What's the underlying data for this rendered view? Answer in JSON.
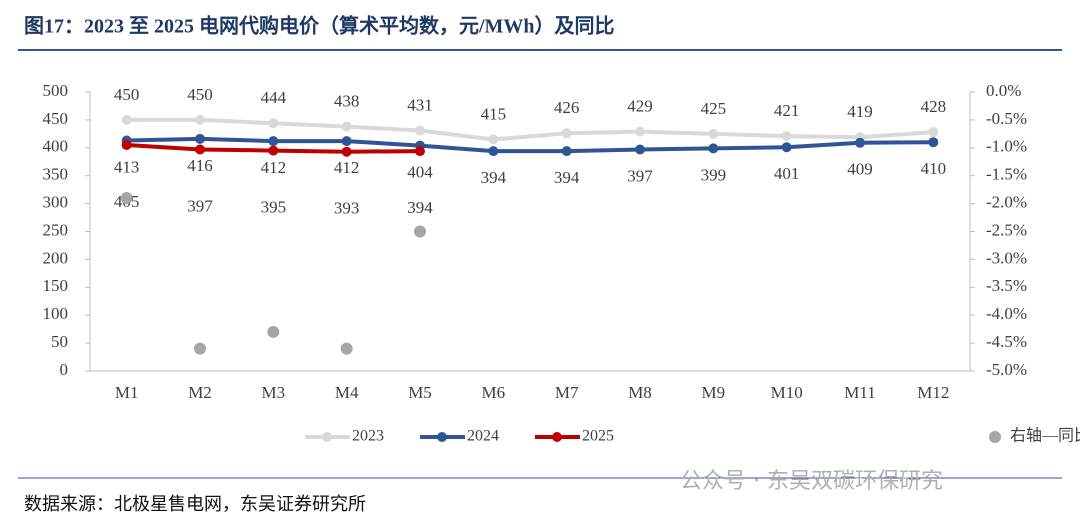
{
  "chart_data": {
    "type": "line",
    "title": "图17：2023 至 2025 电网代购电价（算术平均数，元/MWh）及同比",
    "source": "数据来源：北极星售电网，东吴证券研究所",
    "watermark": "公众号 · 东吴双碳环保研究",
    "categories": [
      "M1",
      "M2",
      "M3",
      "M4",
      "M5",
      "M6",
      "M7",
      "M8",
      "M9",
      "M10",
      "M11",
      "M12"
    ],
    "series": [
      {
        "name": "2023",
        "color": "#d9d9d9",
        "values": [
          450,
          450,
          444,
          438,
          431,
          415,
          426,
          429,
          425,
          421,
          419,
          428
        ]
      },
      {
        "name": "2024",
        "color": "#2f5597",
        "values": [
          413,
          416,
          412,
          412,
          404,
          394,
          394,
          397,
          399,
          401,
          409,
          410
        ]
      },
      {
        "name": "2025",
        "color": "#c00000",
        "values": [
          405,
          397,
          395,
          393,
          394,
          null,
          null,
          null,
          null,
          null,
          null,
          null
        ]
      },
      {
        "name": "右轴—同比",
        "color": "#a6a6a6",
        "type": "scatter",
        "axis": "y2",
        "values": [
          -1.9,
          -4.6,
          -4.3,
          -4.6,
          -2.5,
          null,
          null,
          null,
          null,
          null,
          null,
          null
        ]
      }
    ],
    "ylim": [
      0,
      500
    ],
    "yticks": [
      0,
      50,
      100,
      150,
      200,
      250,
      300,
      350,
      400,
      450,
      500
    ],
    "y2lim": [
      -5,
      0
    ],
    "y2ticks": [
      {
        "value": 0,
        "label": "0.0%"
      },
      {
        "value": -0.5,
        "label": "-0.5%"
      },
      {
        "value": -1,
        "label": "-1.0%"
      },
      {
        "value": -1.5,
        "label": "-1.5%"
      },
      {
        "value": -2,
        "label": "-2.0%"
      },
      {
        "value": -2.5,
        "label": "-2.5%"
      },
      {
        "value": -3,
        "label": "-3.0%"
      },
      {
        "value": -3.5,
        "label": "-3.5%"
      },
      {
        "value": -4,
        "label": "-4.0%"
      },
      {
        "value": -4.5,
        "label": "-4.5%"
      },
      {
        "value": -5,
        "label": "-5.0%"
      }
    ],
    "legend": "bottom"
  }
}
